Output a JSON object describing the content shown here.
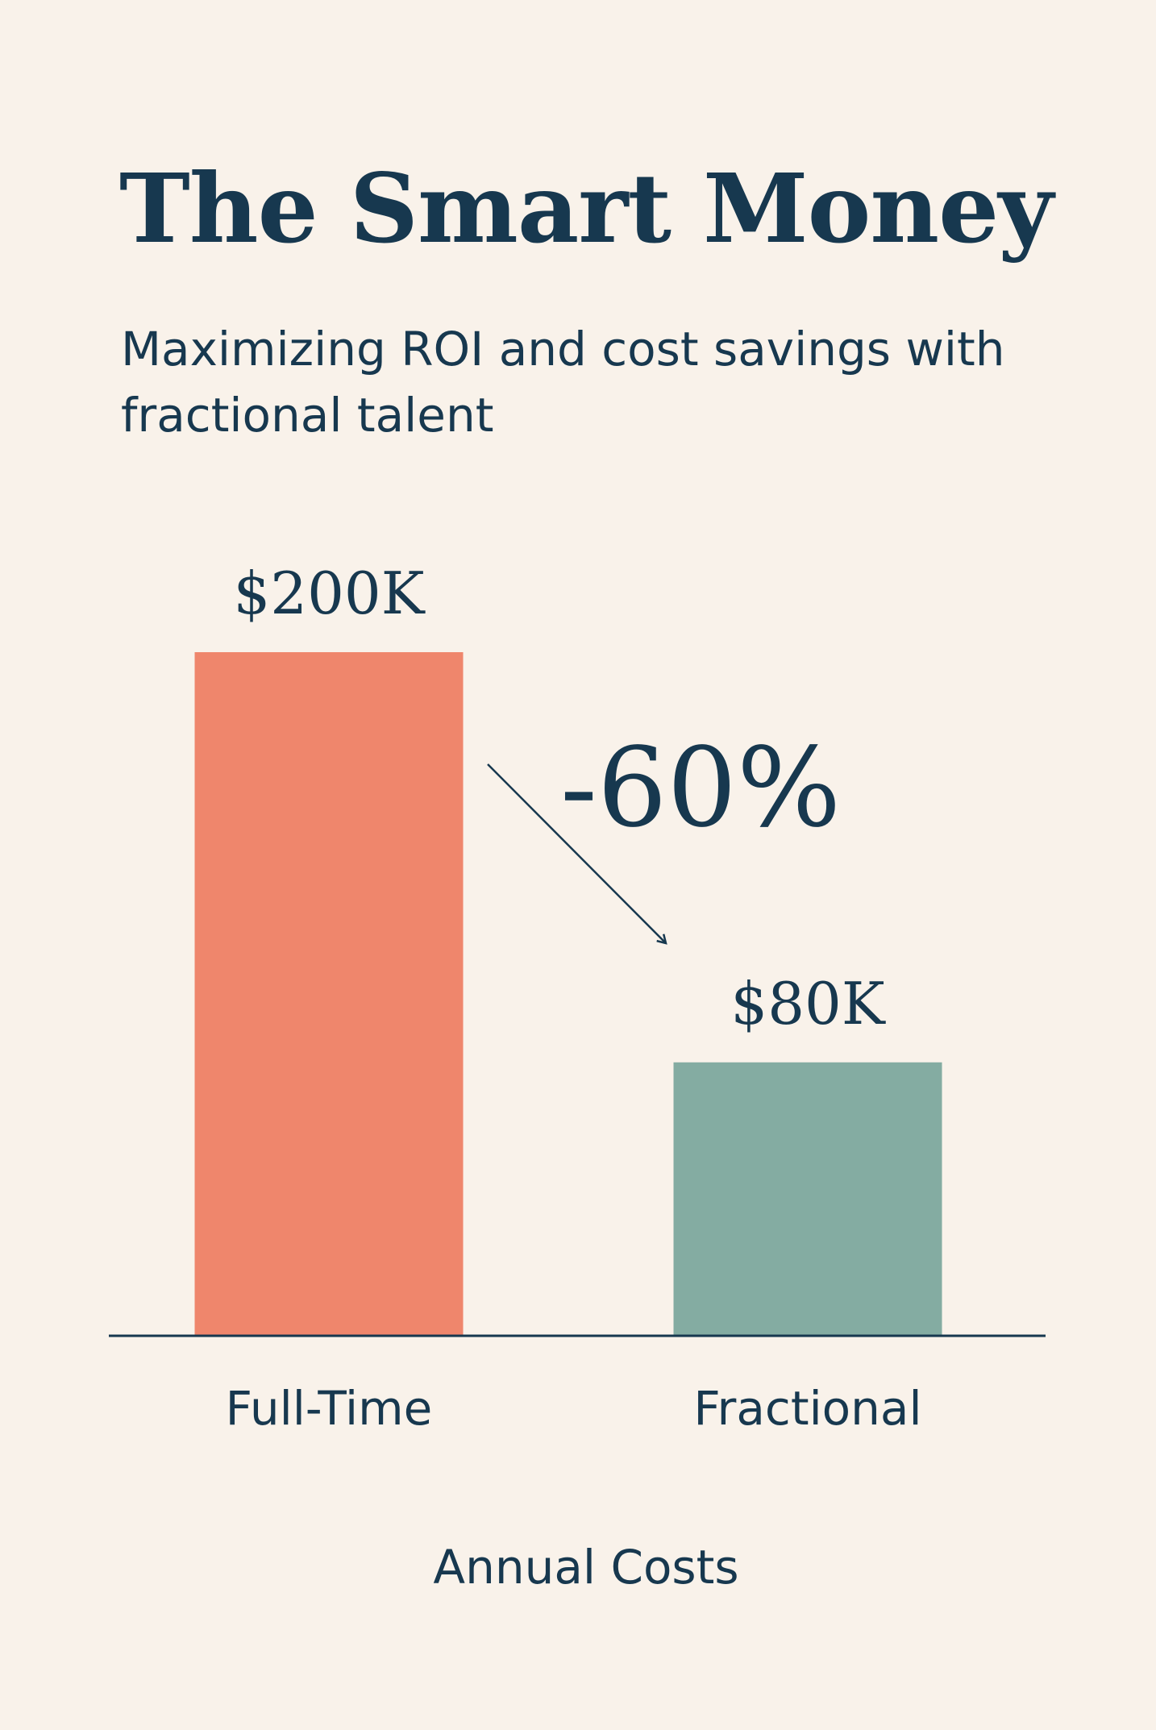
{
  "title": "The Smart Money",
  "subtitle": "Maximizing ROI and cost savings with fractional talent",
  "chart_data": {
    "type": "bar",
    "categories": [
      "Full-Time",
      "Fractional"
    ],
    "values": [
      200,
      80
    ],
    "value_labels": [
      "$200K",
      "$80K"
    ],
    "xlabel": "Annual Costs",
    "ylabel": "",
    "change_label": "-60%",
    "colors": [
      "#ef866c",
      "#84aca2"
    ],
    "axis_color": "#17384f",
    "text_color": "#17384f",
    "background": "#f9f2ea"
  }
}
